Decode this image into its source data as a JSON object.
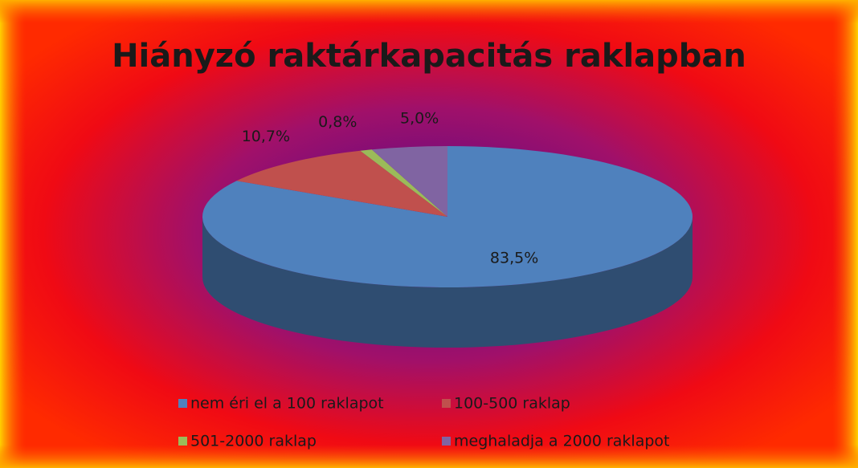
{
  "chart_data": {
    "type": "pie",
    "title": "Hiányzó raktárkapacitás raklapban",
    "categories": [
      "nem éri el a 100 raklapot",
      "100-500 raklap",
      "501-2000 raklap",
      "meghaladja a 2000 raklapot"
    ],
    "values": [
      83.5,
      10.7,
      0.8,
      5.0
    ],
    "value_labels": [
      "83,5%",
      "10,7%",
      "0,8%",
      "5,0%"
    ],
    "colors": [
      "#4f81bd",
      "#c0504d",
      "#9bbb59",
      "#8064a2"
    ],
    "legend": "bottom"
  }
}
